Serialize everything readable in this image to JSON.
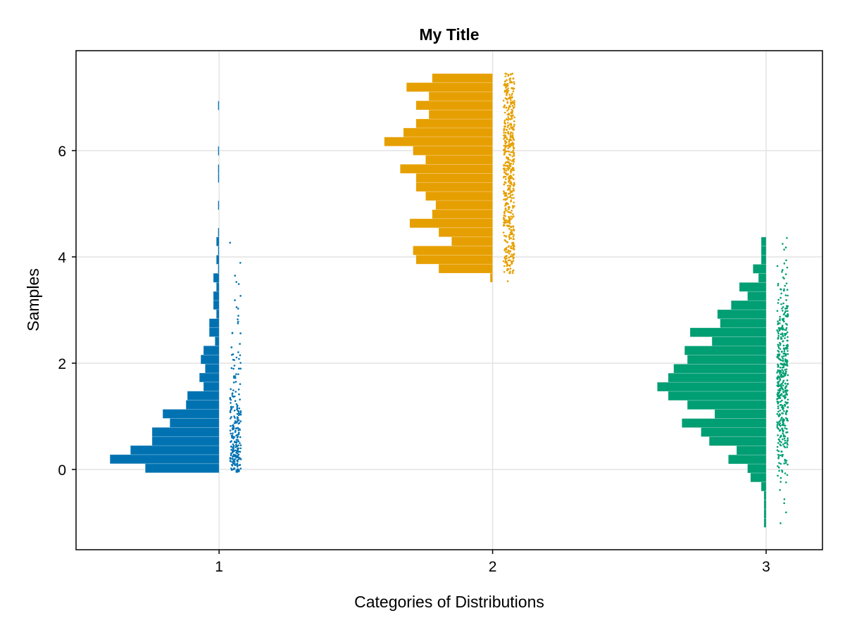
{
  "chart_data": {
    "type": "histogram-raincloud",
    "title": "My Title",
    "xlabel": "Categories of Distributions",
    "ylabel": "Samples",
    "xlim": [
      0.477,
      3.206
    ],
    "ylim": [
      -1.51,
      7.88
    ],
    "xticks": [
      1,
      2,
      3
    ],
    "yticks": [
      0,
      2,
      4,
      6
    ],
    "grid": true,
    "categories": [
      1,
      2,
      3
    ],
    "series": [
      {
        "category": 1,
        "color": "#0072B2",
        "bin_start": -0.062,
        "bin_width": 0.1706,
        "bar_lengths": [
          0.27,
          0.399,
          0.324,
          0.245,
          0.245,
          0.18,
          0.206,
          0.121,
          0.116,
          0.057,
          0.072,
          0.051,
          0.067,
          0.057,
          0.015,
          0.036,
          0.036,
          0.01,
          0.021,
          0.021,
          0.01,
          0.021,
          0.004,
          0.01,
          0.004,
          0.01,
          0.004,
          0,
          0,
          0.004,
          0,
          0,
          0.004,
          0.004,
          0,
          0.004,
          0,
          0,
          0,
          0,
          0.004
        ]
      },
      {
        "category": 2,
        "color": "#E69F00",
        "bin_start": 3.523,
        "bin_width": 0.1707,
        "bar_lengths": [
          0.009,
          0.197,
          0.28,
          0.291,
          0.15,
          0.197,
          0.303,
          0.221,
          0.208,
          0.245,
          0.28,
          0.28,
          0.338,
          0.245,
          0.291,
          0.396,
          0.326,
          0.28,
          0.233,
          0.28,
          0.233,
          0.315,
          0.221
        ]
      },
      {
        "category": 3,
        "color": "#009E73",
        "bin_start": -1.09,
        "bin_width": 0.1707,
        "bar_lengths": [
          0.008,
          0.008,
          0.008,
          0.008,
          0.018,
          0.057,
          0.068,
          0.138,
          0.108,
          0.208,
          0.238,
          0.308,
          0.188,
          0.288,
          0.358,
          0.398,
          0.358,
          0.338,
          0.288,
          0.298,
          0.198,
          0.278,
          0.168,
          0.178,
          0.128,
          0.068,
          0.098,
          0.028,
          0.048,
          0.018,
          0.018,
          0.018
        ]
      }
    ],
    "scatter_offset": [
      0.04,
      0.08
    ]
  }
}
